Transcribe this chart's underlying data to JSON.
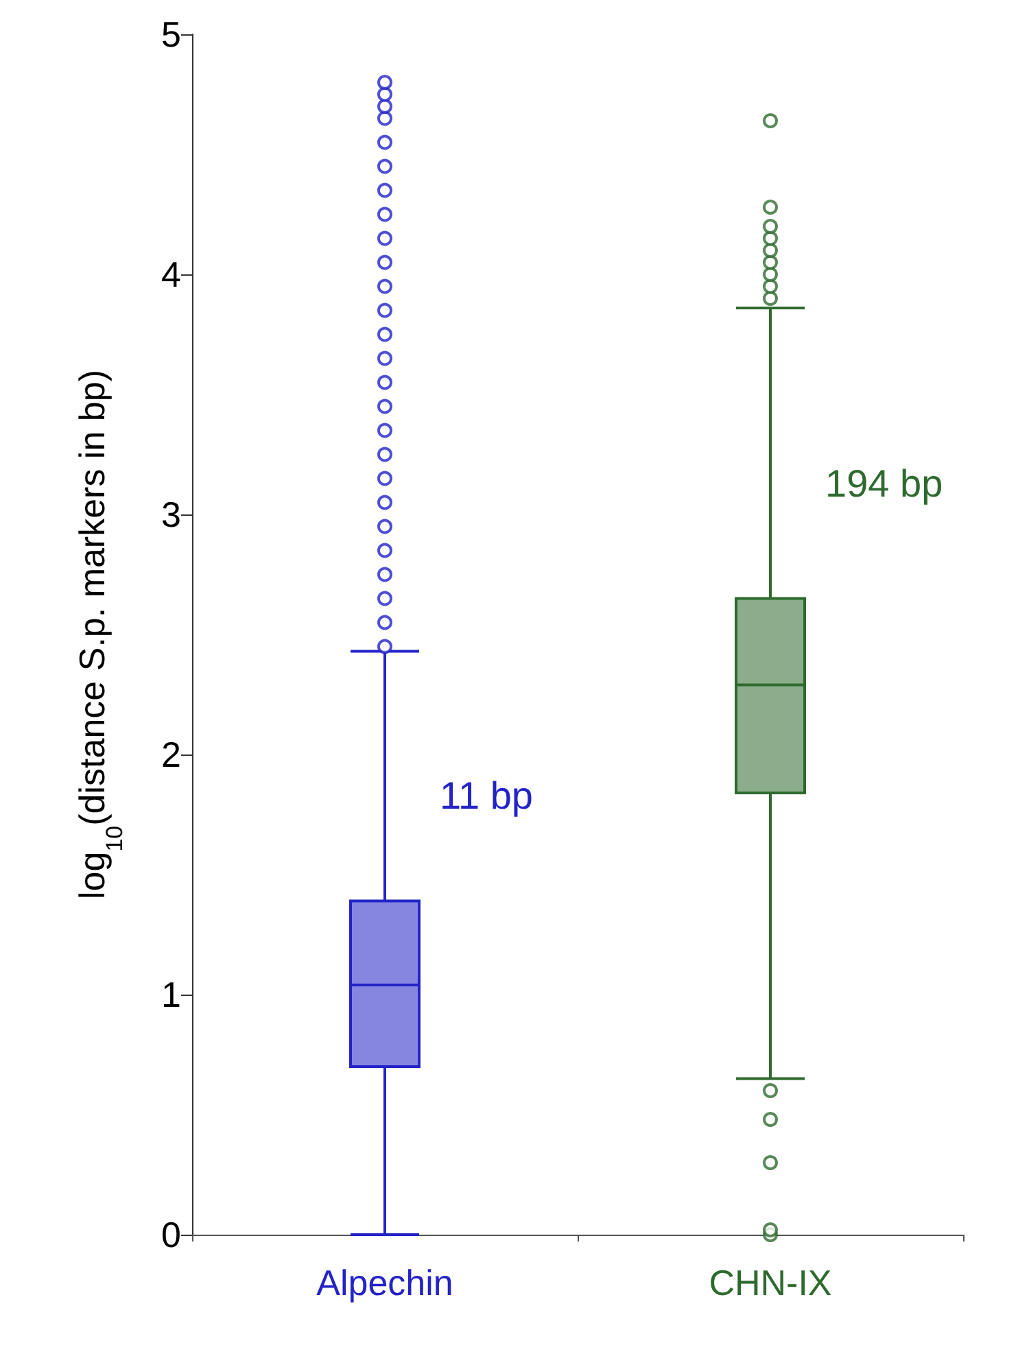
{
  "chart_data": {
    "type": "box",
    "categories": [
      "Alpechin",
      "CHN-IX"
    ],
    "colors": [
      "#2323c8",
      "#2e6a2e"
    ],
    "boxes": [
      {
        "low": 0,
        "q1": 0.7,
        "median": 1.04,
        "q3": 1.39,
        "high": 2.43,
        "outliers": [
          2.45,
          2.55,
          2.65,
          2.75,
          2.85,
          2.95,
          3.05,
          3.15,
          3.25,
          3.35,
          3.45,
          3.55,
          3.65,
          3.75,
          3.85,
          3.95,
          4.05,
          4.15,
          4.25,
          4.35,
          4.45,
          4.55,
          4.65,
          4.7,
          4.75,
          4.8
        ]
      },
      {
        "low": 0.65,
        "q1": 1.84,
        "median": 2.29,
        "q3": 2.65,
        "high": 3.86,
        "outliers": [
          0,
          0.02,
          0.3,
          0.48,
          0.6,
          3.9,
          3.95,
          4.0,
          4.05,
          4.1,
          4.15,
          4.2,
          4.28,
          4.64
        ]
      }
    ],
    "ylabel": "log$_{10}$(distance S.p. markers in bp)",
    "ylim": [
      0,
      5
    ],
    "yticks": [
      0,
      1,
      2,
      3,
      4,
      5
    ],
    "annotations": [
      {
        "text": "11 bp",
        "x": "Alpechin",
        "y": 1.83
      },
      {
        "text": "194 bp",
        "x": "CHN-IX",
        "y": 3.13
      }
    ],
    "marker": "circle"
  }
}
